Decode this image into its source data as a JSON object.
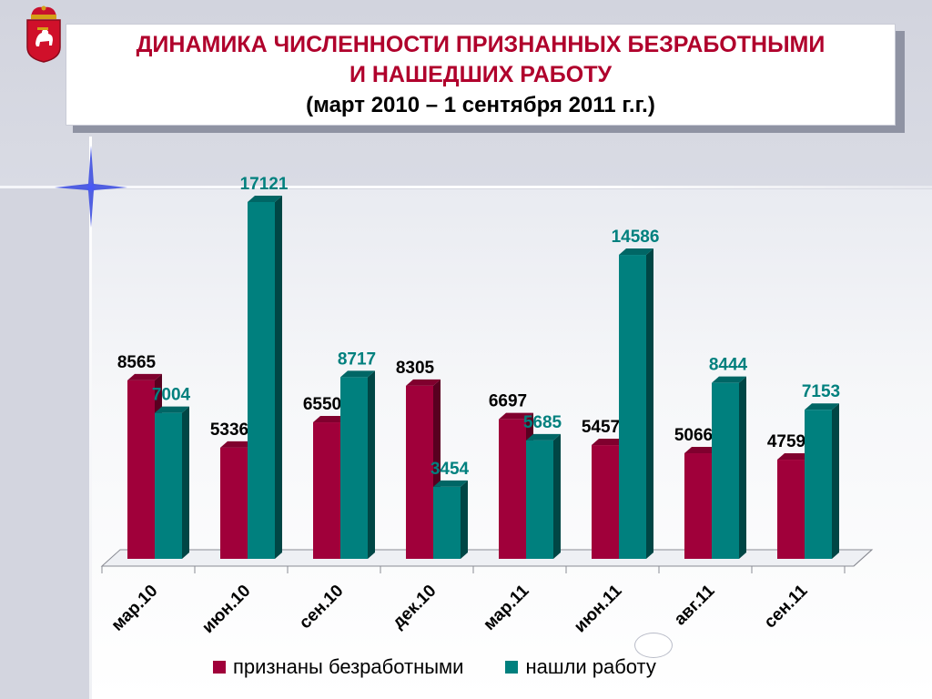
{
  "title": {
    "line1": "ДИНАМИКА ЧИСЛЕННОСТИ ПРИЗНАННЫХ БЕЗРАБОТНЫМИ",
    "line2": "И НАШЕДШИХ РАБОТУ",
    "line3": "(март 2010 – 1 сентября 2011 г.г.)"
  },
  "colors": {
    "unemployed": "#a0003a",
    "found_work": "#00807e",
    "title_text": "#b0002c"
  },
  "chart_data": {
    "type": "bar",
    "categories": [
      "мар.10",
      "июн.10",
      "сен.10",
      "дек.10",
      "мар.11",
      "июн.11",
      "авг.11",
      "сен.11"
    ],
    "series": [
      {
        "name": "признаны безработными",
        "values": [
          8565,
          5336,
          6550,
          8305,
          6697,
          5457,
          5066,
          4759
        ]
      },
      {
        "name": "нашли работу",
        "values": [
          7004,
          17121,
          8717,
          3454,
          5685,
          14586,
          8444,
          7153
        ]
      }
    ],
    "ylim": [
      0,
      17121
    ],
    "grid": false,
    "legend_position": "bottom",
    "three_d": true
  }
}
